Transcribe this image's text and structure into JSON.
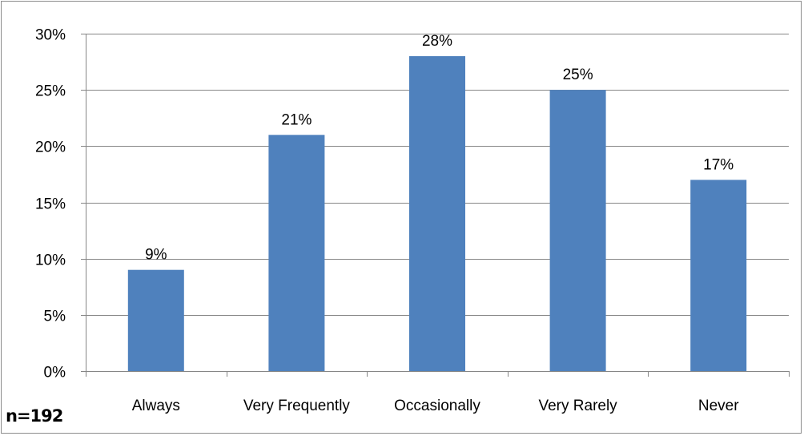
{
  "chart_data": {
    "type": "bar",
    "categories": [
      "Always",
      "Very Frequently",
      "Occasionally",
      "Very Rarely",
      "Never"
    ],
    "values": [
      9,
      21,
      28,
      25,
      17
    ],
    "data_labels": [
      "9%",
      "21%",
      "28%",
      "25%",
      "17%"
    ],
    "y_ticks": [
      0,
      5,
      10,
      15,
      20,
      25,
      30
    ],
    "y_tick_labels": [
      "0%",
      "5%",
      "10%",
      "15%",
      "20%",
      "25%",
      "30%"
    ],
    "ylim": [
      0,
      30
    ],
    "grid": true,
    "bar_color": "#4f81bd",
    "gridline_color": "#868686"
  },
  "note": "n=192"
}
